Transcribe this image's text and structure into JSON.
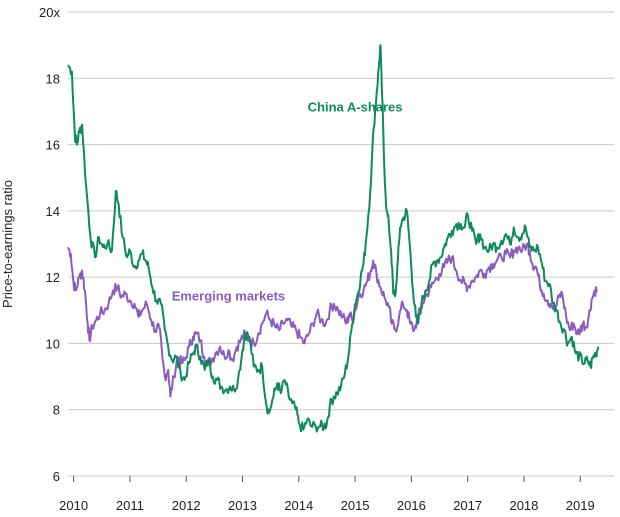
{
  "chart_data": {
    "type": "line",
    "ylabel": "Price-to-earnings ratio",
    "ylim": [
      6,
      20
    ],
    "xlim": [
      2009.9,
      2019.6
    ],
    "y_ticks": [
      {
        "value": 6,
        "label": "6"
      },
      {
        "value": 8,
        "label": "8"
      },
      {
        "value": 10,
        "label": "10"
      },
      {
        "value": 12,
        "label": "12"
      },
      {
        "value": 14,
        "label": "14"
      },
      {
        "value": 16,
        "label": "16"
      },
      {
        "value": 18,
        "label": "18"
      },
      {
        "value": 20,
        "label": "20x"
      }
    ],
    "x_ticks": [
      {
        "value": 2010,
        "label": "2010"
      },
      {
        "value": 2011,
        "label": "2011"
      },
      {
        "value": 2012,
        "label": "2012"
      },
      {
        "value": 2013,
        "label": "2013"
      },
      {
        "value": 2014,
        "label": "2014"
      },
      {
        "value": 2015,
        "label": "2015"
      },
      {
        "value": 2016,
        "label": "2016"
      },
      {
        "value": 2017,
        "label": "2017"
      },
      {
        "value": 2018,
        "label": "2018"
      },
      {
        "value": 2019,
        "label": "2019"
      }
    ],
    "grid": "horizontal",
    "series": [
      {
        "name": "China A-shares",
        "color": "#0f8a5f",
        "points": [
          [
            2009.9,
            18.4
          ],
          [
            2009.97,
            18.2
          ],
          [
            2010.02,
            16.3
          ],
          [
            2010.06,
            16.0
          ],
          [
            2010.1,
            16.4
          ],
          [
            2010.15,
            16.6
          ],
          [
            2010.22,
            14.8
          ],
          [
            2010.3,
            13.2
          ],
          [
            2010.38,
            12.6
          ],
          [
            2010.45,
            13.2
          ],
          [
            2010.52,
            12.9
          ],
          [
            2010.6,
            13.0
          ],
          [
            2010.68,
            12.8
          ],
          [
            2010.75,
            14.6
          ],
          [
            2010.8,
            14.2
          ],
          [
            2010.87,
            13.2
          ],
          [
            2010.95,
            12.6
          ],
          [
            2011.0,
            12.8
          ],
          [
            2011.08,
            12.3
          ],
          [
            2011.15,
            12.5
          ],
          [
            2011.22,
            12.7
          ],
          [
            2011.28,
            12.5
          ],
          [
            2011.33,
            12.3
          ],
          [
            2011.4,
            11.7
          ],
          [
            2011.47,
            11.3
          ],
          [
            2011.55,
            11.2
          ],
          [
            2011.62,
            10.4
          ],
          [
            2011.68,
            9.9
          ],
          [
            2011.75,
            9.5
          ],
          [
            2011.82,
            9.6
          ],
          [
            2011.9,
            9.1
          ],
          [
            2011.97,
            8.9
          ],
          [
            2012.05,
            9.4
          ],
          [
            2012.12,
            9.7
          ],
          [
            2012.18,
            9.9
          ],
          [
            2012.25,
            9.6
          ],
          [
            2012.33,
            9.2
          ],
          [
            2012.4,
            9.5
          ],
          [
            2012.47,
            9.0
          ],
          [
            2012.55,
            8.9
          ],
          [
            2012.62,
            8.7
          ],
          [
            2012.7,
            8.6
          ],
          [
            2012.78,
            8.7
          ],
          [
            2012.85,
            8.6
          ],
          [
            2012.92,
            8.9
          ],
          [
            2013.0,
            9.8
          ],
          [
            2013.05,
            10.3
          ],
          [
            2013.12,
            10.2
          ],
          [
            2013.2,
            9.3
          ],
          [
            2013.28,
            9.2
          ],
          [
            2013.35,
            9.3
          ],
          [
            2013.42,
            8.2
          ],
          [
            2013.47,
            7.9
          ],
          [
            2013.55,
            8.4
          ],
          [
            2013.62,
            8.8
          ],
          [
            2013.68,
            8.5
          ],
          [
            2013.75,
            8.9
          ],
          [
            2013.82,
            8.4
          ],
          [
            2013.88,
            8.2
          ],
          [
            2013.95,
            8.0
          ],
          [
            2014.0,
            7.6
          ],
          [
            2014.08,
            7.4
          ],
          [
            2014.15,
            7.7
          ],
          [
            2014.22,
            7.5
          ],
          [
            2014.3,
            7.5
          ],
          [
            2014.38,
            7.5
          ],
          [
            2014.45,
            7.5
          ],
          [
            2014.5,
            7.6
          ],
          [
            2014.55,
            8.1
          ],
          [
            2014.62,
            8.4
          ],
          [
            2014.68,
            8.5
          ],
          [
            2014.75,
            8.7
          ],
          [
            2014.82,
            9.1
          ],
          [
            2014.88,
            9.6
          ],
          [
            2014.95,
            10.6
          ],
          [
            2015.0,
            11.2
          ],
          [
            2015.05,
            11.5
          ],
          [
            2015.1,
            12.0
          ],
          [
            2015.15,
            12.4
          ],
          [
            2015.2,
            13.2
          ],
          [
            2015.27,
            14.6
          ],
          [
            2015.33,
            16.5
          ],
          [
            2015.38,
            17.5
          ],
          [
            2015.42,
            18.3
          ],
          [
            2015.45,
            19.0
          ],
          [
            2015.48,
            17.5
          ],
          [
            2015.52,
            15.3
          ],
          [
            2015.56,
            14.0
          ],
          [
            2015.6,
            13.6
          ],
          [
            2015.64,
            12.8
          ],
          [
            2015.68,
            11.5
          ],
          [
            2015.72,
            11.5
          ],
          [
            2015.76,
            12.5
          ],
          [
            2015.8,
            13.5
          ],
          [
            2015.86,
            13.8
          ],
          [
            2015.92,
            14.0
          ],
          [
            2015.97,
            13.0
          ],
          [
            2016.03,
            11.6
          ],
          [
            2016.08,
            10.8
          ],
          [
            2016.12,
            10.6
          ],
          [
            2016.18,
            11.2
          ],
          [
            2016.25,
            11.6
          ],
          [
            2016.32,
            11.9
          ],
          [
            2016.38,
            12.4
          ],
          [
            2016.45,
            12.5
          ],
          [
            2016.52,
            12.6
          ],
          [
            2016.58,
            12.9
          ],
          [
            2016.65,
            13.2
          ],
          [
            2016.72,
            13.4
          ],
          [
            2016.8,
            13.6
          ],
          [
            2016.88,
            13.6
          ],
          [
            2016.95,
            13.5
          ],
          [
            2017.0,
            13.9
          ],
          [
            2017.08,
            13.4
          ],
          [
            2017.15,
            13.0
          ],
          [
            2017.22,
            13.3
          ],
          [
            2017.3,
            12.9
          ],
          [
            2017.38,
            12.8
          ],
          [
            2017.45,
            13.0
          ],
          [
            2017.52,
            12.9
          ],
          [
            2017.6,
            13.1
          ],
          [
            2017.68,
            13.3
          ],
          [
            2017.75,
            13.0
          ],
          [
            2017.82,
            13.5
          ],
          [
            2017.9,
            13.2
          ],
          [
            2017.97,
            13.3
          ],
          [
            2018.03,
            13.5
          ],
          [
            2018.1,
            12.9
          ],
          [
            2018.18,
            12.8
          ],
          [
            2018.25,
            12.9
          ],
          [
            2018.32,
            12.4
          ],
          [
            2018.38,
            11.9
          ],
          [
            2018.45,
            11.8
          ],
          [
            2018.52,
            11.2
          ],
          [
            2018.58,
            11.0
          ],
          [
            2018.65,
            10.6
          ],
          [
            2018.72,
            10.4
          ],
          [
            2018.78,
            10.0
          ],
          [
            2018.85,
            10.2
          ],
          [
            2018.92,
            9.7
          ],
          [
            2018.98,
            9.6
          ],
          [
            2019.03,
            9.5
          ],
          [
            2019.08,
            9.4
          ],
          [
            2019.13,
            9.5
          ],
          [
            2019.18,
            9.3
          ],
          [
            2019.23,
            9.6
          ],
          [
            2019.28,
            9.7
          ],
          [
            2019.32,
            9.9
          ]
        ]
      },
      {
        "name": "Emerging markets",
        "color": "#8a5cc0",
        "points": [
          [
            2009.9,
            12.9
          ],
          [
            2009.95,
            12.7
          ],
          [
            2010.0,
            11.8
          ],
          [
            2010.04,
            11.6
          ],
          [
            2010.1,
            12.0
          ],
          [
            2010.15,
            12.2
          ],
          [
            2010.2,
            11.6
          ],
          [
            2010.25,
            10.6
          ],
          [
            2010.28,
            10.1
          ],
          [
            2010.33,
            10.5
          ],
          [
            2010.4,
            10.7
          ],
          [
            2010.47,
            10.9
          ],
          [
            2010.55,
            11.0
          ],
          [
            2010.62,
            11.2
          ],
          [
            2010.7,
            11.6
          ],
          [
            2010.78,
            11.7
          ],
          [
            2010.85,
            11.4
          ],
          [
            2010.92,
            11.5
          ],
          [
            2011.0,
            11.3
          ],
          [
            2011.08,
            11.2
          ],
          [
            2011.15,
            10.8
          ],
          [
            2011.22,
            11.0
          ],
          [
            2011.3,
            11.2
          ],
          [
            2011.38,
            10.7
          ],
          [
            2011.45,
            10.4
          ],
          [
            2011.52,
            10.5
          ],
          [
            2011.58,
            9.5
          ],
          [
            2011.62,
            9.0
          ],
          [
            2011.68,
            9.2
          ],
          [
            2011.72,
            8.4
          ],
          [
            2011.78,
            9.0
          ],
          [
            2011.85,
            9.6
          ],
          [
            2011.92,
            9.4
          ],
          [
            2011.98,
            9.5
          ],
          [
            2012.05,
            9.9
          ],
          [
            2012.12,
            10.2
          ],
          [
            2012.18,
            10.3
          ],
          [
            2012.25,
            10.1
          ],
          [
            2012.32,
            9.6
          ],
          [
            2012.38,
            9.4
          ],
          [
            2012.45,
            9.5
          ],
          [
            2012.52,
            9.7
          ],
          [
            2012.6,
            9.9
          ],
          [
            2012.68,
            9.6
          ],
          [
            2012.75,
            9.8
          ],
          [
            2012.82,
            9.5
          ],
          [
            2012.9,
            9.9
          ],
          [
            2012.97,
            10.1
          ],
          [
            2013.05,
            10.3
          ],
          [
            2013.12,
            10.1
          ],
          [
            2013.2,
            10.0
          ],
          [
            2013.28,
            10.3
          ],
          [
            2013.35,
            10.6
          ],
          [
            2013.42,
            10.9
          ],
          [
            2013.5,
            10.7
          ],
          [
            2013.58,
            10.5
          ],
          [
            2013.65,
            10.4
          ],
          [
            2013.72,
            10.6
          ],
          [
            2013.8,
            10.7
          ],
          [
            2013.88,
            10.5
          ],
          [
            2013.95,
            10.4
          ],
          [
            2014.02,
            10.2
          ],
          [
            2014.1,
            10.0
          ],
          [
            2014.18,
            10.3
          ],
          [
            2014.25,
            10.6
          ],
          [
            2014.32,
            10.9
          ],
          [
            2014.4,
            10.7
          ],
          [
            2014.48,
            10.6
          ],
          [
            2014.55,
            11.0
          ],
          [
            2014.62,
            11.2
          ],
          [
            2014.7,
            11.0
          ],
          [
            2014.78,
            10.8
          ],
          [
            2014.85,
            10.6
          ],
          [
            2014.9,
            10.9
          ],
          [
            2014.95,
            10.7
          ],
          [
            2015.0,
            11.0
          ],
          [
            2015.08,
            11.5
          ],
          [
            2015.15,
            11.6
          ],
          [
            2015.22,
            11.9
          ],
          [
            2015.28,
            12.2
          ],
          [
            2015.32,
            12.5
          ],
          [
            2015.38,
            12.1
          ],
          [
            2015.45,
            11.7
          ],
          [
            2015.52,
            11.4
          ],
          [
            2015.6,
            11.1
          ],
          [
            2015.65,
            10.6
          ],
          [
            2015.72,
            10.4
          ],
          [
            2015.78,
            10.8
          ],
          [
            2015.85,
            11.2
          ],
          [
            2015.92,
            11.0
          ],
          [
            2015.98,
            10.6
          ],
          [
            2016.05,
            10.4
          ],
          [
            2016.12,
            10.8
          ],
          [
            2016.2,
            11.2
          ],
          [
            2016.28,
            11.5
          ],
          [
            2016.35,
            11.7
          ],
          [
            2016.42,
            11.9
          ],
          [
            2016.5,
            12.1
          ],
          [
            2016.58,
            12.3
          ],
          [
            2016.65,
            12.5
          ],
          [
            2016.72,
            12.6
          ],
          [
            2016.8,
            12.2
          ],
          [
            2016.88,
            11.9
          ],
          [
            2016.95,
            11.8
          ],
          [
            2017.0,
            11.7
          ],
          [
            2017.08,
            11.9
          ],
          [
            2017.15,
            12.0
          ],
          [
            2017.22,
            12.2
          ],
          [
            2017.3,
            12.1
          ],
          [
            2017.38,
            12.3
          ],
          [
            2017.45,
            12.4
          ],
          [
            2017.52,
            12.5
          ],
          [
            2017.6,
            12.6
          ],
          [
            2017.68,
            12.7
          ],
          [
            2017.75,
            12.6
          ],
          [
            2017.82,
            12.8
          ],
          [
            2017.9,
            12.9
          ],
          [
            2017.97,
            12.8
          ],
          [
            2018.05,
            13.0
          ],
          [
            2018.1,
            12.8
          ],
          [
            2018.15,
            12.4
          ],
          [
            2018.22,
            12.3
          ],
          [
            2018.28,
            11.8
          ],
          [
            2018.35,
            11.5
          ],
          [
            2018.42,
            11.3
          ],
          [
            2018.48,
            11.2
          ],
          [
            2018.55,
            11.0
          ],
          [
            2018.62,
            11.4
          ],
          [
            2018.68,
            11.5
          ],
          [
            2018.75,
            10.8
          ],
          [
            2018.82,
            10.4
          ],
          [
            2018.88,
            10.6
          ],
          [
            2018.95,
            10.3
          ],
          [
            2019.0,
            10.4
          ],
          [
            2019.05,
            10.6
          ],
          [
            2019.1,
            10.5
          ],
          [
            2019.15,
            10.8
          ],
          [
            2019.2,
            11.3
          ],
          [
            2019.26,
            11.6
          ],
          [
            2019.3,
            11.6
          ]
        ]
      }
    ],
    "annotations": [
      {
        "text": "China A-shares",
        "x": 2015.0,
        "y": 17.0,
        "color": "#0f8a5f"
      },
      {
        "text": "Emerging markets",
        "x": 2012.75,
        "y": 11.3,
        "color": "#8a5cc0"
      }
    ]
  }
}
